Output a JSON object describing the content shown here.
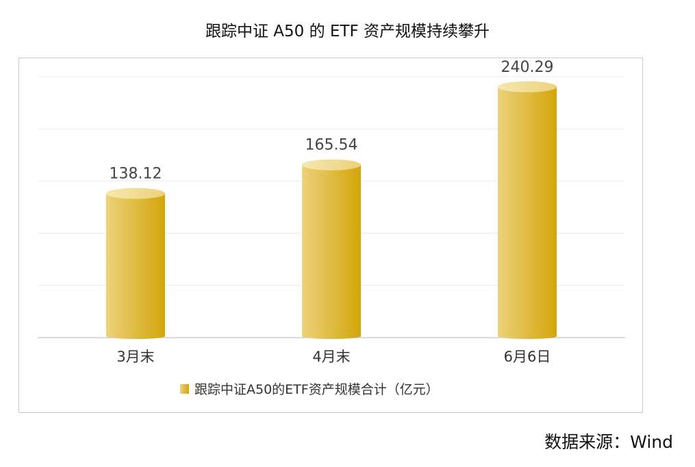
{
  "chart_data": {
    "type": "bar",
    "title": "跟踪中证 A50 的 ETF 资产规模持续攀升",
    "categories": [
      "3月末",
      "4月末",
      "6月6日"
    ],
    "series": [
      {
        "name": "跟踪中证A50的ETF资产规模合计（亿元）",
        "values": [
          138.12,
          165.54,
          240.29
        ]
      }
    ],
    "value_labels": [
      "138.12",
      "165.54",
      "240.29"
    ],
    "ylim": [
      0,
      250
    ],
    "grid": true,
    "legend_position": "bottom",
    "bar_color_light": "#ecd27a",
    "bar_color_dark": "#d4a50a",
    "gridline_color": "#ececec",
    "axis_color": "#cfcfcf"
  },
  "source": "数据来源：Wind"
}
